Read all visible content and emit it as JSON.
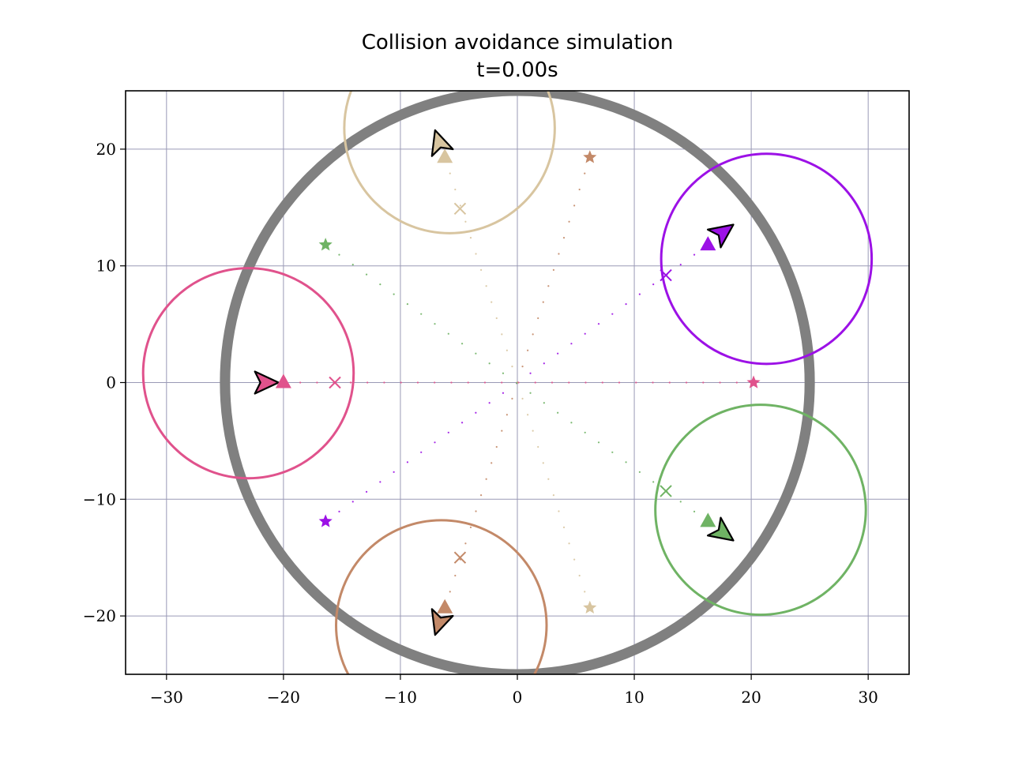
{
  "chart_data": {
    "type": "scatter",
    "title": "Collision avoidance simulation",
    "subtitle": "t=0.00s",
    "xlabel": "",
    "ylabel": "",
    "xlim": [
      -33.5,
      33.5
    ],
    "ylim": [
      -25,
      25
    ],
    "xticks": [
      -30,
      -20,
      -10,
      0,
      10,
      20,
      30
    ],
    "yticks": [
      -20,
      -10,
      0,
      10,
      20
    ],
    "xtick_labels": [
      "−30",
      "−20",
      "−10",
      "0",
      "10",
      "20",
      "30"
    ],
    "ytick_labels": [
      "−20",
      "−10",
      "0",
      "10",
      "20"
    ],
    "grid": true,
    "colors": {
      "grid": "#9a9ab6",
      "boundary": "#808080"
    },
    "boundary_circle": {
      "center": [
        0,
        0
      ],
      "radius": 25
    },
    "agents": [
      {
        "color": "#e0528c",
        "position": [
          -20.0,
          0.0
        ],
        "goal": [
          20.2,
          0.0
        ],
        "waypoint": [
          -15.6,
          0.0
        ],
        "sensing_circle": {
          "center": [
            -23.0,
            0.8
          ],
          "radius": 9.0
        },
        "heading_marker": [
          -21.5,
          0.0
        ],
        "heading_deg": 0
      },
      {
        "color": "#9c11e6",
        "position": [
          16.3,
          11.8
        ],
        "goal": [
          -16.4,
          -11.9
        ],
        "waypoint": [
          12.7,
          9.2
        ],
        "sensing_circle": {
          "center": [
            21.3,
            10.6
          ],
          "radius": 9.0
        },
        "heading_marker": [
          17.6,
          12.9
        ],
        "heading_deg": 36
      },
      {
        "color": "#d8c5a0",
        "position": [
          -6.2,
          19.3
        ],
        "goal": [
          6.2,
          -19.3
        ],
        "waypoint": [
          -4.9,
          14.9
        ],
        "sensing_circle": {
          "center": [
            -5.8,
            21.8
          ],
          "radius": 9.0
        },
        "heading_marker": [
          -6.7,
          20.6
        ],
        "heading_deg": 108
      },
      {
        "color": "#c38968",
        "position": [
          -6.2,
          -19.3
        ],
        "goal": [
          6.2,
          19.3
        ],
        "waypoint": [
          -4.9,
          -15.0
        ],
        "sensing_circle": {
          "center": [
            -6.5,
            -20.8
          ],
          "radius": 9.0
        },
        "heading_marker": [
          -6.7,
          -20.6
        ],
        "heading_deg": -108
      },
      {
        "color": "#6fb364",
        "position": [
          16.3,
          -11.9
        ],
        "goal": [
          -16.4,
          11.8
        ],
        "waypoint": [
          12.7,
          -9.3
        ],
        "sensing_circle": {
          "center": [
            20.8,
            -10.9
          ],
          "radius": 9.0
        },
        "heading_marker": [
          17.6,
          -12.9
        ],
        "heading_deg": -36
      }
    ]
  }
}
